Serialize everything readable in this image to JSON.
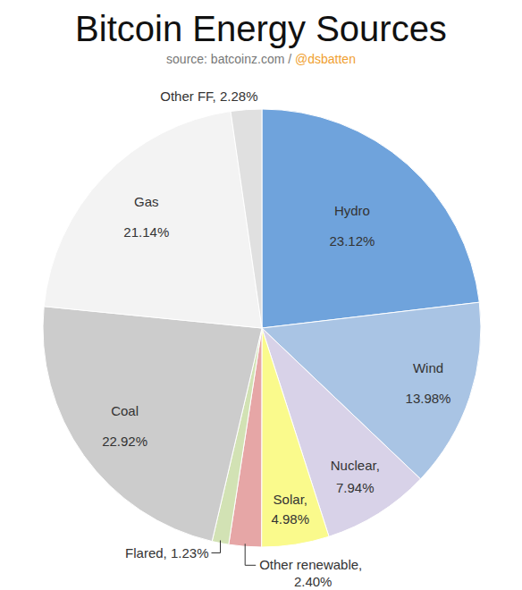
{
  "chart_data": {
    "type": "pie",
    "title": "Bitcoin Energy Sources",
    "subtitle": "source: batcoinz.com / @dsbatten",
    "categories": [
      "Hydro",
      "Wind",
      "Nuclear,",
      "Solar,",
      "Other renewable,",
      "Flared,",
      "Coal",
      "Gas",
      "Other FF,"
    ],
    "values": [
      23.12,
      13.98,
      7.94,
      4.98,
      2.4,
      1.23,
      22.92,
      21.14,
      2.28
    ],
    "value_labels": [
      "23.12%",
      "13.98%",
      "7.94%",
      "4.98%",
      "2.40%",
      "1.23%",
      "22.92%",
      "21.14%",
      "2.28%"
    ],
    "colors": [
      "#6fa3dc",
      "#a9c4e4",
      "#d8d2e8",
      "#fafa8c",
      "#e6a6a6",
      "#d2e2b4",
      "#cccccc",
      "#f3f3f3",
      "#e0e0e0"
    ],
    "data_labels": true
  }
}
